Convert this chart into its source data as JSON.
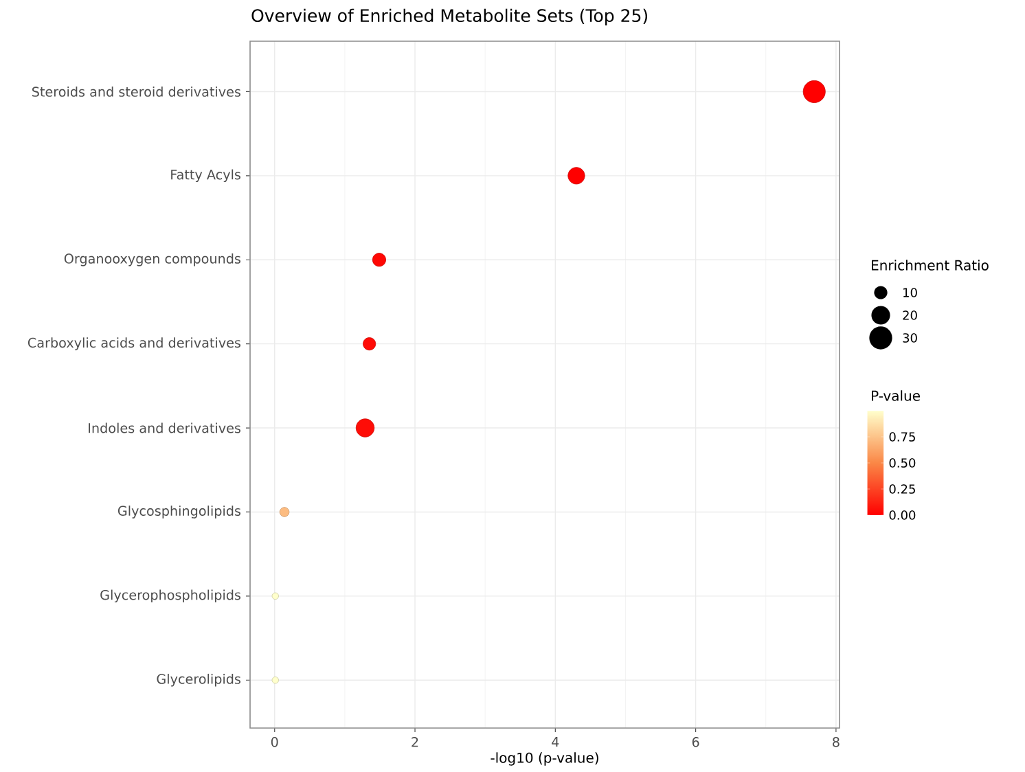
{
  "chart_data": {
    "type": "bubble",
    "orientation": "horizontal",
    "title": "Overview of Enriched Metabolite Sets (Top 25)",
    "xlabel": "-log10 (p-value)",
    "categories": [
      "Steroids and steroid derivatives",
      "Fatty Acyls",
      "Organooxygen compounds",
      "Carboxylic acids and derivatives",
      "Indoles and derivatives",
      "Glycosphingolipids",
      "Glycerophospholipids",
      "Glycerolipids"
    ],
    "values": [
      7.69,
      4.3,
      1.49,
      1.35,
      1.29,
      0.14,
      0.01,
      0.01
    ],
    "sizes": [
      28,
      16,
      10,
      9,
      19,
      5,
      2.5,
      2.5
    ],
    "size_legend": [
      10,
      20,
      30
    ],
    "legend_title": "Enrichment Ratio",
    "cvalues": [
      0.0,
      0.0,
      0.03,
      0.04,
      0.05,
      0.72,
      1.0,
      1.0
    ],
    "clabel": "P-value",
    "clim": [
      0,
      1
    ],
    "cticks": [
      {
        "value": 0,
        "label": "0.00"
      },
      {
        "value": 0.25,
        "label": "0.25"
      },
      {
        "value": 0.5,
        "label": "0.50"
      },
      {
        "value": 0.75,
        "label": "0.75"
      }
    ],
    "xlim": [
      -0.35,
      8.05
    ],
    "xticks": [
      0,
      2,
      4,
      6,
      8
    ],
    "grid": true
  }
}
